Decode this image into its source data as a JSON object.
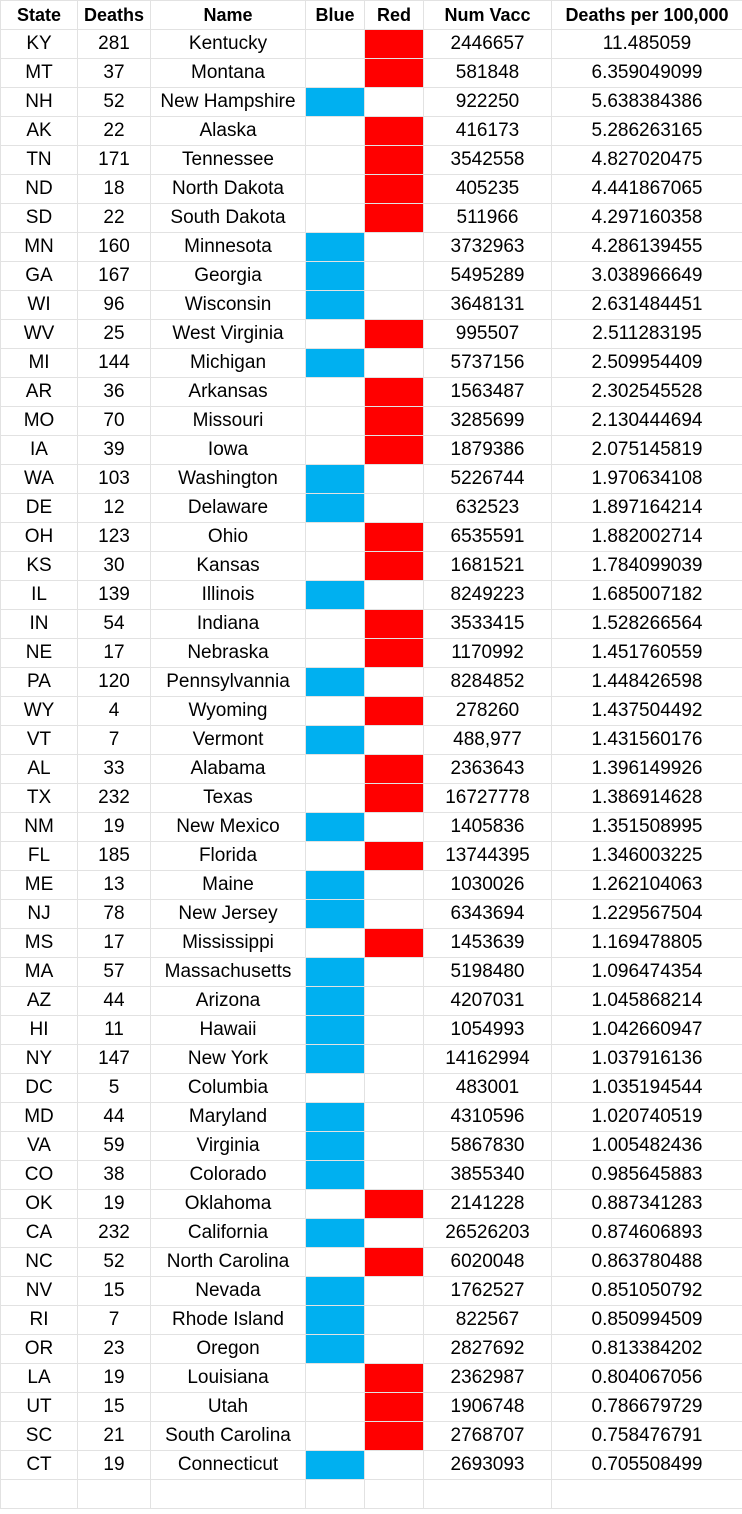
{
  "colors": {
    "blue": "#00b0f0",
    "red": "#ff0000",
    "grid": "#e2e2e2"
  },
  "headers": [
    "State",
    "Deaths",
    "Name",
    "Blue",
    "Red",
    "Num Vacc",
    "Deaths per 100,000"
  ],
  "rows": [
    {
      "state": "KY",
      "deaths": "281",
      "name": "Kentucky",
      "party": "red",
      "vacc": "2446657",
      "rate": "11.485059"
    },
    {
      "state": "MT",
      "deaths": "37",
      "name": "Montana",
      "party": "red",
      "vacc": "581848",
      "rate": "6.359049099"
    },
    {
      "state": "NH",
      "deaths": "52",
      "name": "New Hampshire",
      "party": "blue",
      "vacc": "922250",
      "rate": "5.638384386"
    },
    {
      "state": "AK",
      "deaths": "22",
      "name": "Alaska",
      "party": "red",
      "vacc": "416173",
      "rate": "5.286263165"
    },
    {
      "state": "TN",
      "deaths": "171",
      "name": "Tennessee",
      "party": "red",
      "vacc": "3542558",
      "rate": "4.827020475"
    },
    {
      "state": "ND",
      "deaths": "18",
      "name": "North Dakota",
      "party": "red",
      "vacc": "405235",
      "rate": "4.441867065"
    },
    {
      "state": "SD",
      "deaths": "22",
      "name": "South Dakota",
      "party": "red",
      "vacc": "511966",
      "rate": "4.297160358"
    },
    {
      "state": "MN",
      "deaths": "160",
      "name": "Minnesota",
      "party": "blue",
      "vacc": "3732963",
      "rate": "4.286139455"
    },
    {
      "state": "GA",
      "deaths": "167",
      "name": "Georgia",
      "party": "blue",
      "vacc": "5495289",
      "rate": "3.038966649"
    },
    {
      "state": "WI",
      "deaths": "96",
      "name": "Wisconsin",
      "party": "blue",
      "vacc": "3648131",
      "rate": "2.631484451"
    },
    {
      "state": "WV",
      "deaths": "25",
      "name": "West Virginia",
      "party": "red",
      "vacc": "995507",
      "rate": "2.511283195"
    },
    {
      "state": "MI",
      "deaths": "144",
      "name": "Michigan",
      "party": "blue",
      "vacc": "5737156",
      "rate": "2.509954409"
    },
    {
      "state": "AR",
      "deaths": "36",
      "name": "Arkansas",
      "party": "red",
      "vacc": "1563487",
      "rate": "2.302545528"
    },
    {
      "state": "MO",
      "deaths": "70",
      "name": "Missouri",
      "party": "red",
      "vacc": "3285699",
      "rate": "2.130444694"
    },
    {
      "state": "IA",
      "deaths": "39",
      "name": "Iowa",
      "party": "red",
      "vacc": "1879386",
      "rate": "2.075145819"
    },
    {
      "state": "WA",
      "deaths": "103",
      "name": "Washington",
      "party": "blue",
      "vacc": "5226744",
      "rate": "1.970634108"
    },
    {
      "state": "DE",
      "deaths": "12",
      "name": "Delaware",
      "party": "blue",
      "vacc": "632523",
      "rate": "1.897164214"
    },
    {
      "state": "OH",
      "deaths": "123",
      "name": "Ohio",
      "party": "red",
      "vacc": "6535591",
      "rate": "1.882002714"
    },
    {
      "state": "KS",
      "deaths": "30",
      "name": "Kansas",
      "party": "red",
      "vacc": "1681521",
      "rate": "1.784099039"
    },
    {
      "state": "IL",
      "deaths": "139",
      "name": "Illinois",
      "party": "blue",
      "vacc": "8249223",
      "rate": "1.685007182"
    },
    {
      "state": "IN",
      "deaths": "54",
      "name": "Indiana",
      "party": "red",
      "vacc": "3533415",
      "rate": "1.528266564"
    },
    {
      "state": "NE",
      "deaths": "17",
      "name": "Nebraska",
      "party": "red",
      "vacc": "1170992",
      "rate": "1.451760559"
    },
    {
      "state": "PA",
      "deaths": "120",
      "name": "Pennsylvannia",
      "party": "blue",
      "vacc": "8284852",
      "rate": "1.448426598"
    },
    {
      "state": "WY",
      "deaths": "4",
      "name": "Wyoming",
      "party": "red",
      "vacc": "278260",
      "rate": "1.437504492"
    },
    {
      "state": "VT",
      "deaths": "7",
      "name": "Vermont",
      "party": "blue",
      "vacc": "488,977",
      "rate": "1.431560176"
    },
    {
      "state": "AL",
      "deaths": "33",
      "name": "Alabama",
      "party": "red",
      "vacc": "2363643",
      "rate": "1.396149926"
    },
    {
      "state": "TX",
      "deaths": "232",
      "name": "Texas",
      "party": "red",
      "vacc": "16727778",
      "rate": "1.386914628"
    },
    {
      "state": "NM",
      "deaths": "19",
      "name": "New Mexico",
      "party": "blue",
      "vacc": "1405836",
      "rate": "1.351508995"
    },
    {
      "state": "FL",
      "deaths": "185",
      "name": "Florida",
      "party": "red",
      "vacc": "13744395",
      "rate": "1.346003225"
    },
    {
      "state": "ME",
      "deaths": "13",
      "name": "Maine",
      "party": "blue",
      "vacc": "1030026",
      "rate": "1.262104063"
    },
    {
      "state": "NJ",
      "deaths": "78",
      "name": "New Jersey",
      "party": "blue",
      "vacc": "6343694",
      "rate": "1.229567504"
    },
    {
      "state": "MS",
      "deaths": "17",
      "name": "Mississippi",
      "party": "red",
      "vacc": "1453639",
      "rate": "1.169478805"
    },
    {
      "state": "MA",
      "deaths": "57",
      "name": "Massachusetts",
      "party": "blue",
      "vacc": "5198480",
      "rate": "1.096474354"
    },
    {
      "state": "AZ",
      "deaths": "44",
      "name": "Arizona",
      "party": "blue",
      "vacc": "4207031",
      "rate": "1.045868214"
    },
    {
      "state": "HI",
      "deaths": "11",
      "name": "Hawaii",
      "party": "blue",
      "vacc": "1054993",
      "rate": "1.042660947"
    },
    {
      "state": "NY",
      "deaths": "147",
      "name": "New York",
      "party": "blue",
      "vacc": "14162994",
      "rate": "1.037916136"
    },
    {
      "state": "DC",
      "deaths": "5",
      "name": "Columbia",
      "party": "",
      "vacc": "483001",
      "rate": "1.035194544"
    },
    {
      "state": "MD",
      "deaths": "44",
      "name": "Maryland",
      "party": "blue",
      "vacc": "4310596",
      "rate": "1.020740519"
    },
    {
      "state": "VA",
      "deaths": "59",
      "name": "Virginia",
      "party": "blue",
      "vacc": "5867830",
      "rate": "1.005482436"
    },
    {
      "state": "CO",
      "deaths": "38",
      "name": "Colorado",
      "party": "blue",
      "vacc": "3855340",
      "rate": "0.985645883"
    },
    {
      "state": "OK",
      "deaths": "19",
      "name": "Oklahoma",
      "party": "red",
      "vacc": "2141228",
      "rate": "0.887341283"
    },
    {
      "state": "CA",
      "deaths": "232",
      "name": "California",
      "party": "blue",
      "vacc": "26526203",
      "rate": "0.874606893"
    },
    {
      "state": "NC",
      "deaths": "52",
      "name": "North Carolina",
      "party": "red",
      "vacc": "6020048",
      "rate": "0.863780488"
    },
    {
      "state": "NV",
      "deaths": "15",
      "name": "Nevada",
      "party": "blue",
      "vacc": "1762527",
      "rate": "0.851050792"
    },
    {
      "state": "RI",
      "deaths": "7",
      "name": "Rhode Island",
      "party": "blue",
      "vacc": "822567",
      "rate": "0.850994509"
    },
    {
      "state": "OR",
      "deaths": "23",
      "name": "Oregon",
      "party": "blue",
      "vacc": "2827692",
      "rate": "0.813384202"
    },
    {
      "state": "LA",
      "deaths": "19",
      "name": "Louisiana",
      "party": "red",
      "vacc": "2362987",
      "rate": "0.804067056"
    },
    {
      "state": "UT",
      "deaths": "15",
      "name": "Utah",
      "party": "red",
      "vacc": "1906748",
      "rate": "0.786679729"
    },
    {
      "state": "SC",
      "deaths": "21",
      "name": "South Carolina",
      "party": "red",
      "vacc": "2768707",
      "rate": "0.758476791"
    },
    {
      "state": "CT",
      "deaths": "19",
      "name": "Connecticut",
      "party": "blue",
      "vacc": "2693093",
      "rate": "0.705508499"
    }
  ]
}
